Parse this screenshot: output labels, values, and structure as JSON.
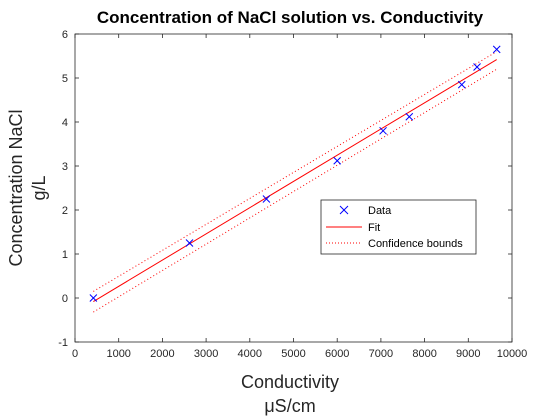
{
  "chart_data": {
    "type": "scatter",
    "title": "Concentration of NaCl solution vs. Conductivity",
    "xlabel": "Conductivity",
    "xlabel_unit": "μS/cm",
    "ylabel": "Concentration NaCl",
    "ylabel_unit": "g/L",
    "xlim": [
      0,
      10000
    ],
    "ylim": [
      -1,
      6
    ],
    "xticks": [
      0,
      1000,
      2000,
      3000,
      4000,
      5000,
      6000,
      7000,
      8000,
      9000,
      10000
    ],
    "yticks": [
      -1,
      0,
      1,
      2,
      3,
      4,
      5,
      6
    ],
    "grid": false,
    "legend_position": "center-right",
    "series": [
      {
        "name": "Data",
        "kind": "marker",
        "marker": "x",
        "color": "#0000ff",
        "points": [
          {
            "x": 420,
            "y": 0.0
          },
          {
            "x": 2620,
            "y": 1.25
          },
          {
            "x": 4380,
            "y": 2.25
          },
          {
            "x": 6000,
            "y": 3.12
          },
          {
            "x": 7050,
            "y": 3.8
          },
          {
            "x": 7650,
            "y": 4.12
          },
          {
            "x": 8850,
            "y": 4.85
          },
          {
            "x": 9200,
            "y": 5.25
          },
          {
            "x": 9650,
            "y": 5.65
          }
        ]
      },
      {
        "name": "Fit",
        "kind": "line",
        "color": "#ff0000",
        "style": "solid",
        "points": [
          {
            "x": 420,
            "y": -0.08
          },
          {
            "x": 9650,
            "y": 5.42
          }
        ]
      },
      {
        "name": "Confidence bounds",
        "kind": "line",
        "color": "#ff0000",
        "style": "dotted",
        "lines": [
          [
            {
              "x": 420,
              "y": 0.15
            },
            {
              "x": 9650,
              "y": 5.6
            }
          ],
          [
            {
              "x": 420,
              "y": -0.32
            },
            {
              "x": 9650,
              "y": 5.2
            }
          ]
        ]
      }
    ]
  }
}
